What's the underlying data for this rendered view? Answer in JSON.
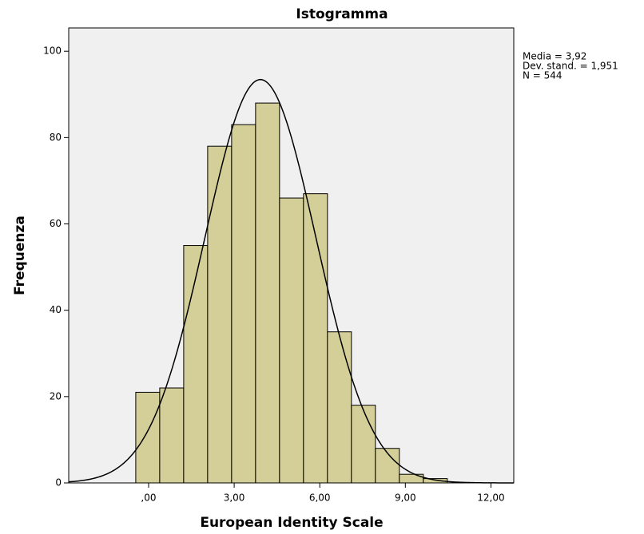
{
  "chart_data": {
    "type": "histogram",
    "title": "Istogramma",
    "x_label": "European Identity Scale",
    "y_label": "Frequenza",
    "bins": [
      -0.45,
      0.39,
      1.23,
      2.07,
      2.91,
      3.75,
      4.59,
      5.43,
      6.27,
      7.11,
      7.95,
      8.79,
      9.63,
      10.47
    ],
    "values": [
      21,
      22,
      55,
      78,
      83,
      88,
      66,
      67,
      35,
      18,
      8,
      2,
      1
    ],
    "color": "#d4cf99",
    "xlim": [
      -2.8,
      12.8
    ],
    "ylim": [
      0,
      105.4
    ],
    "xticks": [
      {
        "value": 0,
        "label": ",00"
      },
      {
        "value": 3,
        "label": "3,00"
      },
      {
        "value": 6,
        "label": "6,00"
      },
      {
        "value": 9,
        "label": "9,00"
      },
      {
        "value": 12,
        "label": "12,00"
      }
    ],
    "yticks": [
      0,
      20,
      40,
      60,
      80,
      100
    ],
    "annotations": [
      "Media = 3,92",
      "Dev. stand. = 1,951",
      "N = 544"
    ],
    "normal_curve": {
      "mean": 3.92,
      "sd": 1.951,
      "n": 544
    }
  }
}
